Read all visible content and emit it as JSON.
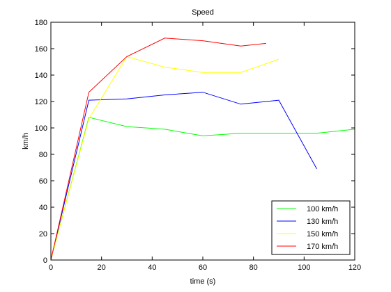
{
  "chart_data": {
    "type": "line",
    "title": "Speed",
    "xlabel": "time (s)",
    "ylabel": "km/h",
    "xlim": [
      0,
      120
    ],
    "ylim": [
      0,
      180
    ],
    "xticks": [
      0,
      20,
      40,
      60,
      80,
      100,
      120
    ],
    "yticks": [
      0,
      20,
      40,
      60,
      80,
      100,
      120,
      140,
      160,
      180
    ],
    "grid": false,
    "legend_position": "bottom-right",
    "series": [
      {
        "name": "100 km/h",
        "color": "#00ff00",
        "x": [
          0,
          15,
          30,
          45,
          60,
          75,
          90,
          105,
          120
        ],
        "y": [
          0,
          108,
          101,
          99,
          94,
          96,
          96,
          96,
          99
        ]
      },
      {
        "name": "130 km/h",
        "color": "#0000ff",
        "x": [
          0,
          15,
          30,
          45,
          60,
          75,
          90,
          105
        ],
        "y": [
          0,
          121,
          122,
          125,
          127,
          118,
          121,
          69
        ]
      },
      {
        "name": "150 km/h",
        "color": "#ffff00",
        "x": [
          0,
          15,
          30,
          45,
          60,
          75,
          90
        ],
        "y": [
          0,
          107,
          154,
          146,
          142,
          142,
          152
        ]
      },
      {
        "name": "170 km/h",
        "color": "#ff0000",
        "x": [
          0,
          15,
          30,
          45,
          60,
          75,
          85
        ],
        "y": [
          0,
          127,
          154,
          168,
          166,
          162,
          164
        ]
      }
    ]
  }
}
